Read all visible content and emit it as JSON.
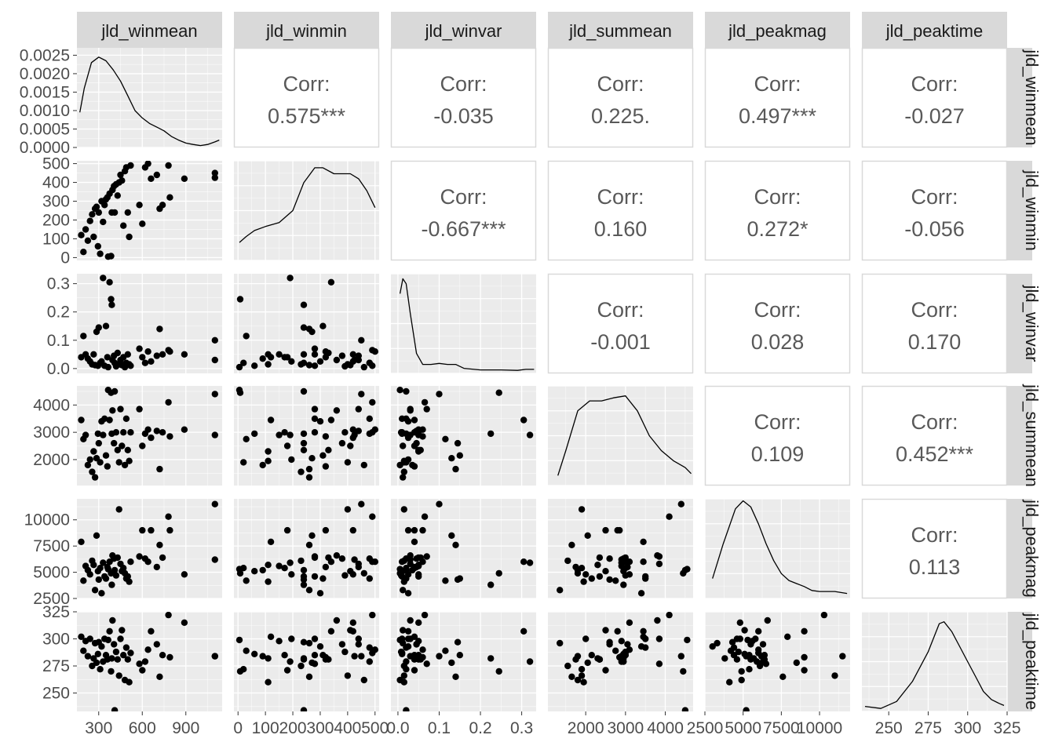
{
  "colors": {
    "panel_bg": "#ebebeb",
    "grid_major": "#ffffff",
    "strip_bg": "#d9d9d9",
    "corr_border": "#d9d9d9",
    "point": "#000000",
    "density_line": "#000000"
  },
  "chart_data": {
    "type": "scatter",
    "subtype": "pairs-plot (scatter matrix: scatter lower, density diagonal, correlation upper)",
    "variables": [
      "jld_winmean",
      "jld_winmin",
      "jld_winvar",
      "jld_summean",
      "jld_peakmag",
      "jld_peaktime"
    ],
    "axes": {
      "jld_winmean": {
        "range": [
          150,
          1150
        ],
        "ticks": [
          300,
          600,
          900
        ],
        "tick_labels": [
          "300",
          "600",
          "900"
        ]
      },
      "jld_winmin": {
        "range": [
          -15,
          515
        ],
        "ticks": [
          0,
          100,
          200,
          300,
          400,
          500
        ],
        "tick_labels": [
          "0",
          "100",
          "200",
          "300",
          "400",
          "500"
        ]
      },
      "jld_winvar": {
        "range": [
          -0.017,
          0.335
        ],
        "ticks": [
          0.0,
          0.1,
          0.2,
          0.3
        ],
        "tick_labels": [
          "0.0",
          "0.1",
          "0.2",
          "0.3"
        ],
        "y_tick_labels": [
          "0.0",
          "0.1",
          "0.2",
          "0.3"
        ]
      },
      "jld_summean": {
        "range": [
          1050,
          4700
        ],
        "ticks": [
          2000,
          3000,
          4000
        ],
        "tick_labels": [
          "2000",
          "3000",
          "4000"
        ]
      },
      "jld_peakmag": {
        "range": [
          2500,
          12000
        ],
        "ticks": [
          2500,
          5000,
          7500,
          10000
        ],
        "tick_labels": [
          "2500",
          "5000",
          "7500",
          "10000"
        ]
      },
      "jld_peaktime": {
        "range": [
          233,
          325
        ],
        "ticks": [
          250,
          275,
          300,
          325
        ],
        "tick_labels": [
          "250",
          "275",
          "300",
          "325"
        ]
      }
    },
    "x_tick_labels_bottom": [
      [
        "300",
        "600",
        "900"
      ],
      [
        "0",
        "100",
        "200",
        "300",
        "400",
        "500"
      ],
      [
        "0.0",
        "0.1",
        "0.2",
        "0.3"
      ],
      [
        "2000",
        "3000",
        "4000"
      ],
      [
        "2500",
        "5000",
        "7500",
        "10000"
      ],
      [
        "250",
        "275",
        "300",
        "325"
      ]
    ],
    "diag_density_axis": {
      "range": [
        0,
        0.0027
      ],
      "ticks": [
        0,
        0.0005,
        0.001,
        0.0015,
        0.002,
        0.0025
      ],
      "tick_labels": [
        "0.0000",
        "0.0005",
        "0.0010",
        "0.0015",
        "0.0020",
        "0.0025"
      ]
    },
    "correlations": [
      {
        "row": 0,
        "col": 1,
        "label": "Corr:",
        "value": "0.575***"
      },
      {
        "row": 0,
        "col": 2,
        "label": "Corr:",
        "value": "-0.035"
      },
      {
        "row": 0,
        "col": 3,
        "label": "Corr:",
        "value": "0.225."
      },
      {
        "row": 0,
        "col": 4,
        "label": "Corr:",
        "value": "0.497***"
      },
      {
        "row": 0,
        "col": 5,
        "label": "Corr:",
        "value": "-0.027"
      },
      {
        "row": 1,
        "col": 2,
        "label": "Corr:",
        "value": "-0.667***"
      },
      {
        "row": 1,
        "col": 3,
        "label": "Corr:",
        "value": "0.160"
      },
      {
        "row": 1,
        "col": 4,
        "label": "Corr:",
        "value": "0.272*"
      },
      {
        "row": 1,
        "col": 5,
        "label": "Corr:",
        "value": "-0.056"
      },
      {
        "row": 2,
        "col": 3,
        "label": "Corr:",
        "value": "-0.001"
      },
      {
        "row": 2,
        "col": 4,
        "label": "Corr:",
        "value": "0.028"
      },
      {
        "row": 2,
        "col": 5,
        "label": "Corr:",
        "value": "0.170"
      },
      {
        "row": 3,
        "col": 4,
        "label": "Corr:",
        "value": "0.109"
      },
      {
        "row": 3,
        "col": 5,
        "label": "Corr:",
        "value": "0.452***"
      },
      {
        "row": 4,
        "col": 5,
        "label": "Corr:",
        "value": "0.113"
      }
    ],
    "densities": [
      [
        [
          170,
          0.00095
        ],
        [
          200,
          0.0016
        ],
        [
          250,
          0.0023
        ],
        [
          300,
          0.00245
        ],
        [
          350,
          0.00235
        ],
        [
          400,
          0.0021
        ],
        [
          450,
          0.0018
        ],
        [
          500,
          0.0014
        ],
        [
          550,
          0.001
        ],
        [
          600,
          0.0008
        ],
        [
          650,
          0.00065
        ],
        [
          700,
          0.00055
        ],
        [
          750,
          0.00045
        ],
        [
          800,
          0.0003
        ],
        [
          850,
          0.0002
        ],
        [
          900,
          0.00012
        ],
        [
          950,
          8e-05
        ],
        [
          1000,
          5e-05
        ],
        [
          1050,
          8e-05
        ],
        [
          1100,
          0.00015
        ],
        [
          1130,
          0.0002
        ]
      ],
      [
        [
          5,
          0.18
        ],
        [
          30,
          0.24
        ],
        [
          60,
          0.3
        ],
        [
          100,
          0.34
        ],
        [
          150,
          0.38
        ],
        [
          200,
          0.5
        ],
        [
          240,
          0.78
        ],
        [
          280,
          0.93
        ],
        [
          310,
          0.93
        ],
        [
          350,
          0.87
        ],
        [
          380,
          0.87
        ],
        [
          410,
          0.87
        ],
        [
          440,
          0.82
        ],
        [
          470,
          0.7
        ],
        [
          500,
          0.53
        ]
      ],
      [
        [
          0.005,
          0.8
        ],
        [
          0.012,
          0.95
        ],
        [
          0.02,
          0.9
        ],
        [
          0.03,
          0.6
        ],
        [
          0.045,
          0.2
        ],
        [
          0.06,
          0.09
        ],
        [
          0.08,
          0.09
        ],
        [
          0.1,
          0.1
        ],
        [
          0.12,
          0.09
        ],
        [
          0.14,
          0.09
        ],
        [
          0.16,
          0.05
        ],
        [
          0.2,
          0.035
        ],
        [
          0.25,
          0.035
        ],
        [
          0.29,
          0.03
        ],
        [
          0.31,
          0.04
        ],
        [
          0.33,
          0.04
        ]
      ],
      [
        [
          1300,
          0.1
        ],
        [
          1500,
          0.35
        ],
        [
          1800,
          0.75
        ],
        [
          2100,
          0.85
        ],
        [
          2400,
          0.85
        ],
        [
          2700,
          0.88
        ],
        [
          3000,
          0.9
        ],
        [
          3300,
          0.75
        ],
        [
          3600,
          0.5
        ],
        [
          3900,
          0.35
        ],
        [
          4200,
          0.25
        ],
        [
          4500,
          0.18
        ],
        [
          4650,
          0.12
        ]
      ],
      [
        [
          3000,
          0.2
        ],
        [
          3700,
          0.55
        ],
        [
          4500,
          0.9
        ],
        [
          5000,
          0.98
        ],
        [
          5500,
          0.92
        ],
        [
          6000,
          0.75
        ],
        [
          6500,
          0.55
        ],
        [
          7000,
          0.38
        ],
        [
          7500,
          0.25
        ],
        [
          8000,
          0.18
        ],
        [
          8500,
          0.15
        ],
        [
          9000,
          0.12
        ],
        [
          9500,
          0.08
        ],
        [
          10000,
          0.07
        ],
        [
          11000,
          0.07
        ],
        [
          11800,
          0.05
        ]
      ],
      [
        [
          235,
          0.05
        ],
        [
          245,
          0.03
        ],
        [
          255,
          0.1
        ],
        [
          265,
          0.3
        ],
        [
          275,
          0.6
        ],
        [
          282,
          0.88
        ],
        [
          285,
          0.9
        ],
        [
          290,
          0.8
        ],
        [
          295,
          0.65
        ],
        [
          300,
          0.5
        ],
        [
          305,
          0.35
        ],
        [
          310,
          0.2
        ],
        [
          315,
          0.12
        ],
        [
          320,
          0.08
        ],
        [
          323,
          0.06
        ]
      ]
    ],
    "rows": [
      {
        "jld_winmean": 180,
        "jld_winmin": 120,
        "jld_winvar": 0.04,
        "jld_summean": 3450,
        "jld_peakmag": 7900,
        "jld_peaktime": 302
      },
      {
        "jld_winmean": 195,
        "jld_winmin": 30,
        "jld_winvar": 0.115,
        "jld_summean": 2750,
        "jld_peakmag": 4200,
        "jld_peaktime": 289
      },
      {
        "jld_winmean": 210,
        "jld_winmin": 150,
        "jld_winvar": 0.05,
        "jld_summean": 2900,
        "jld_peakmag": 5600,
        "jld_peaktime": 298
      },
      {
        "jld_winmean": 225,
        "jld_winmin": 90,
        "jld_winvar": 0.035,
        "jld_summean": 1800,
        "jld_peakmag": 5200,
        "jld_peaktime": 284
      },
      {
        "jld_winmean": 240,
        "jld_winmin": 195,
        "jld_winvar": 0.025,
        "jld_summean": 2000,
        "jld_peakmag": 4800,
        "jld_peaktime": 300
      },
      {
        "jld_winmean": 255,
        "jld_winmin": 230,
        "jld_winvar": 0.015,
        "jld_summean": 1550,
        "jld_peakmag": 6100,
        "jld_peaktime": 275
      },
      {
        "jld_winmean": 265,
        "jld_winmin": 110,
        "jld_winvar": 0.05,
        "jld_summean": 2300,
        "jld_peakmag": 5700,
        "jld_peaktime": 282
      },
      {
        "jld_winmean": 275,
        "jld_winmin": 260,
        "jld_winvar": 0.012,
        "jld_summean": 1350,
        "jld_peakmag": 3300,
        "jld_peaktime": 296
      },
      {
        "jld_winmean": 285,
        "jld_winmin": 270,
        "jld_winvar": 0.13,
        "jld_summean": 2050,
        "jld_peakmag": 8500,
        "jld_peaktime": 278
      },
      {
        "jld_winmean": 295,
        "jld_winmin": 60,
        "jld_winvar": 0.01,
        "jld_summean": 2950,
        "jld_peakmag": 5100,
        "jld_peaktime": 286
      },
      {
        "jld_winmean": 300,
        "jld_winmin": 240,
        "jld_winvar": 0.145,
        "jld_summean": 2600,
        "jld_peakmag": 4300,
        "jld_peaktime": 297
      },
      {
        "jld_winmean": 310,
        "jld_winmin": 20,
        "jld_winvar": 0.02,
        "jld_summean": 1900,
        "jld_peakmag": 5400,
        "jld_peaktime": 272
      },
      {
        "jld_winmean": 320,
        "jld_winmin": 300,
        "jld_winvar": 0.025,
        "jld_summean": 3400,
        "jld_peakmag": 3000,
        "jld_peaktime": 293
      },
      {
        "jld_winmean": 330,
        "jld_winmin": 190,
        "jld_winvar": 0.32,
        "jld_summean": 2900,
        "jld_peakmag": 5900,
        "jld_peaktime": 279
      },
      {
        "jld_winmean": 340,
        "jld_winmin": 280,
        "jld_winvar": 0.01,
        "jld_summean": 3500,
        "jld_peakmag": 4600,
        "jld_peaktime": 300
      },
      {
        "jld_winmean": 350,
        "jld_winmin": 310,
        "jld_winvar": 0.15,
        "jld_summean": 2150,
        "jld_peakmag": 4400,
        "jld_peaktime": 285
      },
      {
        "jld_winmean": 360,
        "jld_winmin": 320,
        "jld_winvar": 0.04,
        "jld_summean": 1750,
        "jld_peakmag": 5500,
        "jld_peaktime": 281
      },
      {
        "jld_winmean": 365,
        "jld_winmin": 5,
        "jld_winvar": 0.005,
        "jld_summean": 4550,
        "jld_peakmag": 5300,
        "jld_peaktime": 299
      },
      {
        "jld_winmean": 375,
        "jld_winmin": 340,
        "jld_winvar": 0.305,
        "jld_summean": 3450,
        "jld_peakmag": 6000,
        "jld_peaktime": 307
      },
      {
        "jld_winmean": 385,
        "jld_winmin": 8,
        "jld_winvar": 0.245,
        "jld_summean": 4450,
        "jld_peakmag": 4900,
        "jld_peaktime": 270
      },
      {
        "jld_winmean": 390,
        "jld_winmin": 240,
        "jld_winvar": 0.225,
        "jld_summean": 2950,
        "jld_peakmag": 3800,
        "jld_peaktime": 282
      },
      {
        "jld_winmean": 395,
        "jld_winmin": 360,
        "jld_winvar": 0.03,
        "jld_summean": 3800,
        "jld_peakmag": 6600,
        "jld_peaktime": 317
      },
      {
        "jld_winmean": 405,
        "jld_winmin": 380,
        "jld_winvar": 0.045,
        "jld_summean": 2600,
        "jld_peakmag": 6300,
        "jld_peaktime": 295
      },
      {
        "jld_winmean": 410,
        "jld_winmin": 240,
        "jld_winvar": 0.02,
        "jld_summean": 4500,
        "jld_peakmag": 5200,
        "jld_peaktime": 234
      },
      {
        "jld_winmean": 420,
        "jld_winmin": 390,
        "jld_winvar": 0.008,
        "jld_summean": 3000,
        "jld_peakmag": 4700,
        "jld_peaktime": 288
      },
      {
        "jld_winmean": 430,
        "jld_winmin": 330,
        "jld_winvar": 0.055,
        "jld_summean": 2350,
        "jld_peakmag": 6400,
        "jld_peaktime": 281
      },
      {
        "jld_winmean": 440,
        "jld_winmin": 400,
        "jld_winvar": 0.015,
        "jld_summean": 1900,
        "jld_peakmag": 11000,
        "jld_peaktime": 266
      },
      {
        "jld_winmean": 450,
        "jld_winmin": 440,
        "jld_winvar": 0.03,
        "jld_summean": 3850,
        "jld_peakmag": 5800,
        "jld_peaktime": 300
      },
      {
        "jld_winmean": 460,
        "jld_winmin": 410,
        "jld_winvar": 0.012,
        "jld_summean": 2500,
        "jld_peakmag": 5100,
        "jld_peaktime": 308
      },
      {
        "jld_winmean": 470,
        "jld_winmin": 170,
        "jld_winvar": 0.04,
        "jld_summean": 3000,
        "jld_peakmag": 5400,
        "jld_peaktime": 285
      },
      {
        "jld_winmean": 480,
        "jld_winmin": 460,
        "jld_winvar": 0.005,
        "jld_summean": 1800,
        "jld_peakmag": 4900,
        "jld_peaktime": 262
      },
      {
        "jld_winmean": 490,
        "jld_winmin": 480,
        "jld_winvar": 0.02,
        "jld_summean": 3500,
        "jld_peakmag": 4400,
        "jld_peaktime": 292
      },
      {
        "jld_winmean": 500,
        "jld_winmin": 240,
        "jld_winvar": 0.05,
        "jld_summean": 2350,
        "jld_peakmag": 4600,
        "jld_peaktime": 281
      },
      {
        "jld_winmean": 510,
        "jld_winmin": 110,
        "jld_winvar": 0.015,
        "jld_summean": 1950,
        "jld_peakmag": 4100,
        "jld_peaktime": 260
      },
      {
        "jld_winmean": 520,
        "jld_winmin": 490,
        "jld_winvar": 0.01,
        "jld_summean": 3000,
        "jld_peakmag": 6000,
        "jld_peaktime": 287
      },
      {
        "jld_winmean": 580,
        "jld_winmin": 280,
        "jld_winvar": 0.07,
        "jld_summean": 3850,
        "jld_peakmag": 6500,
        "jld_peaktime": 277
      },
      {
        "jld_winmean": 600,
        "jld_winmin": 180,
        "jld_winvar": 0.04,
        "jld_summean": 2500,
        "jld_peakmag": 9000,
        "jld_peaktime": 271
      },
      {
        "jld_winmean": 620,
        "jld_winmin": 480,
        "jld_winvar": 0.02,
        "jld_summean": 2950,
        "jld_peakmag": 6300,
        "jld_peaktime": 279
      },
      {
        "jld_winmean": 640,
        "jld_winmin": 500,
        "jld_winvar": 0.06,
        "jld_summean": 3100,
        "jld_peakmag": 6000,
        "jld_peaktime": 290
      },
      {
        "jld_winmean": 660,
        "jld_winmin": 420,
        "jld_winvar": 0.025,
        "jld_summean": 2800,
        "jld_peakmag": 9000,
        "jld_peaktime": 307
      },
      {
        "jld_winmean": 700,
        "jld_winmin": 440,
        "jld_winvar": 0.045,
        "jld_summean": 3050,
        "jld_peakmag": 5500,
        "jld_peaktime": 295
      },
      {
        "jld_winmean": 720,
        "jld_winmin": 260,
        "jld_winvar": 0.14,
        "jld_summean": 1650,
        "jld_peakmag": 7600,
        "jld_peaktime": 265
      },
      {
        "jld_winmean": 740,
        "jld_winmin": 280,
        "jld_winvar": 0.05,
        "jld_summean": 3000,
        "jld_peakmag": 6400,
        "jld_peaktime": 285
      },
      {
        "jld_winmean": 780,
        "jld_winmin": 490,
        "jld_winvar": 0.065,
        "jld_summean": 4100,
        "jld_peakmag": 10300,
        "jld_peaktime": 322
      },
      {
        "jld_winmean": 790,
        "jld_winmin": 320,
        "jld_winvar": 0.06,
        "jld_summean": 2850,
        "jld_peakmag": 9000,
        "jld_peaktime": 283
      },
      {
        "jld_winmean": 890,
        "jld_winmin": 420,
        "jld_winvar": 0.05,
        "jld_summean": 3100,
        "jld_peakmag": 4800,
        "jld_peaktime": 315
      },
      {
        "jld_winmean": 1100,
        "jld_winmin": 450,
        "jld_winvar": 0.1,
        "jld_summean": 4400,
        "jld_peakmag": 11500,
        "jld_peaktime": 284
      },
      {
        "jld_winmean": 1100,
        "jld_winmin": 425,
        "jld_winvar": 0.03,
        "jld_summean": 2900,
        "jld_peakmag": 6200,
        "jld_peaktime": 284
      }
    ]
  }
}
